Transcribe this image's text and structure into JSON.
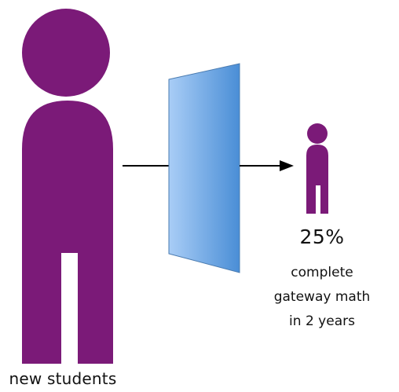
{
  "colors": {
    "person": "#7b1a78",
    "filter_light": "#a9cdf6",
    "filter_dark": "#4a8ed6",
    "arrow": "#000000"
  },
  "icons": {
    "large_person": "person-icon",
    "small_person": "person-icon",
    "filter": "filter-panel-icon"
  },
  "labels": {
    "new_students": "new students",
    "percent": "25%",
    "desc_line1": "complete",
    "desc_line2": "gateway math",
    "desc_line3": "in 2 years"
  }
}
